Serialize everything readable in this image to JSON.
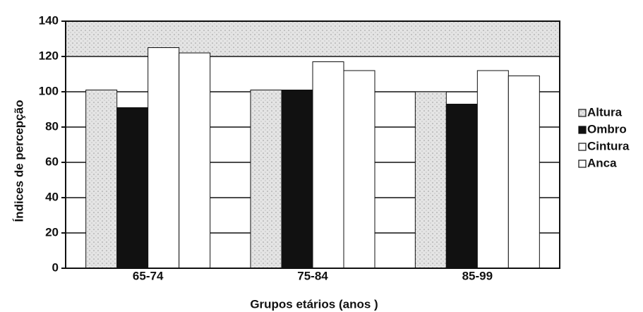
{
  "chart_data": {
    "type": "bar",
    "categories": [
      "65-74",
      "75-84",
      "85-99"
    ],
    "series": [
      {
        "name": "Altura",
        "color": "#d6d6d6",
        "values": [
          101,
          101,
          100
        ]
      },
      {
        "name": "Ombro",
        "color": "#111111",
        "values": [
          91,
          101,
          93
        ]
      },
      {
        "name": "Cintura",
        "color": "#ffffff",
        "values": [
          125,
          117,
          112
        ]
      },
      {
        "name": "Anca",
        "color": "#ffffff",
        "values": [
          122,
          112,
          109
        ]
      }
    ],
    "ylabel": "Índices de percepção",
    "xlabel": "Grupos etários (anos )",
    "ylim": [
      0,
      140
    ],
    "yticks": [
      0,
      20,
      40,
      60,
      80,
      100,
      120,
      140
    ],
    "grid": true,
    "legend": "right"
  }
}
